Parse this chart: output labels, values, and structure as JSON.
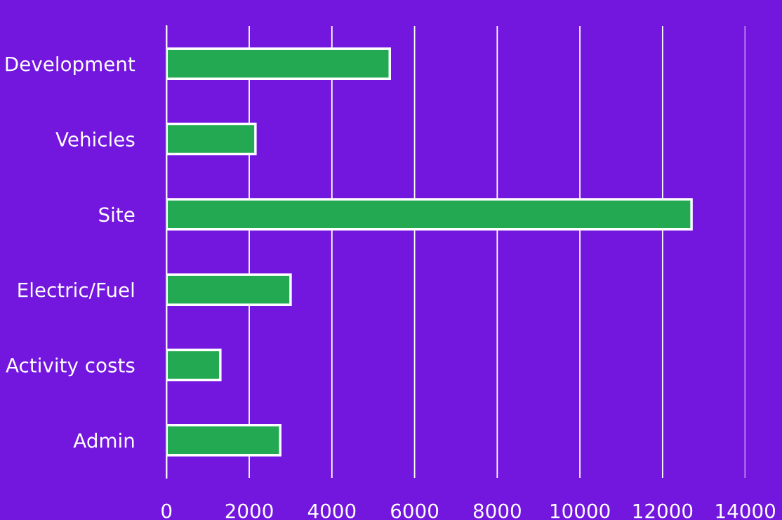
{
  "chart_data": {
    "type": "bar",
    "orientation": "horizontal",
    "categories": [
      "Development",
      "Vehicles",
      "Site",
      "Electric/Fuel",
      "Activity costs",
      "Admin"
    ],
    "values": [
      5400,
      2150,
      12700,
      3000,
      1300,
      2750
    ],
    "color": "#23a952",
    "xlim": [
      0,
      14000
    ],
    "xticks": [
      0,
      2000,
      4000,
      6000,
      8000,
      10000,
      12000,
      14000
    ],
    "grid": "x"
  }
}
